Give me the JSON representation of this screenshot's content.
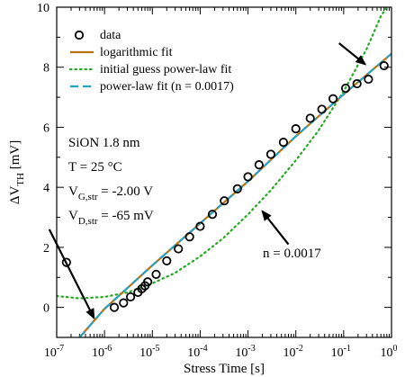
{
  "chart_data": {
    "type": "scatter",
    "xscale": "log",
    "xlim": [
      1e-07,
      1
    ],
    "ylim": [
      -1,
      10
    ],
    "xlabel": "Stress Time [s]",
    "ylabel": {
      "main": "ΔV",
      "sub": "TH",
      "unit": " [mV]"
    },
    "x_ticks": [
      {
        "value": 1e-07,
        "base": "10",
        "exp": "-7"
      },
      {
        "value": 1e-06,
        "base": "10",
        "exp": "-6"
      },
      {
        "value": 1e-05,
        "base": "10",
        "exp": "-5"
      },
      {
        "value": 0.0001,
        "base": "10",
        "exp": "-4"
      },
      {
        "value": 0.001,
        "base": "10",
        "exp": "-3"
      },
      {
        "value": 0.01,
        "base": "10",
        "exp": "-2"
      },
      {
        "value": 0.1,
        "base": "10",
        "exp": "-1"
      },
      {
        "value": 1,
        "base": "10",
        "exp": "0"
      }
    ],
    "y_ticks": [
      0,
      2,
      4,
      6,
      8,
      10
    ],
    "colors": {
      "data": "#000000",
      "log_fit": "#b8730f",
      "initial_guess": "#22aa22",
      "power_fit": "#2a9fbf"
    },
    "series": [
      {
        "name": "data",
        "kind": "markers",
        "points": [
          [
            1.6e-07,
            1.5
          ],
          [
            1.6e-06,
            0.0
          ],
          [
            2.5e-06,
            0.15
          ],
          [
            3.5e-06,
            0.35
          ],
          [
            5e-06,
            0.5
          ],
          [
            6e-06,
            0.62
          ],
          [
            7e-06,
            0.72
          ],
          [
            8e-06,
            0.85
          ],
          [
            1.2e-05,
            1.1
          ],
          [
            2e-05,
            1.55
          ],
          [
            3.5e-05,
            1.95
          ],
          [
            6e-05,
            2.35
          ],
          [
            0.0001,
            2.7
          ],
          [
            0.00018,
            3.1
          ],
          [
            0.00032,
            3.55
          ],
          [
            0.0006,
            3.95
          ],
          [
            0.001,
            4.35
          ],
          [
            0.0017,
            4.75
          ],
          [
            0.003,
            5.1
          ],
          [
            0.0055,
            5.5
          ],
          [
            0.01,
            5.95
          ],
          [
            0.02,
            6.3
          ],
          [
            0.035,
            6.6
          ],
          [
            0.06,
            6.95
          ],
          [
            0.11,
            7.3
          ],
          [
            0.19,
            7.45
          ],
          [
            0.33,
            7.6
          ],
          [
            0.7,
            8.05
          ]
        ]
      },
      {
        "name": "logarithmic fit",
        "kind": "solid",
        "points": [
          [
            3e-07,
            -1.0
          ],
          [
            1e-06,
            -0.05
          ],
          [
            1e-05,
            1.4
          ],
          [
            0.0001,
            2.8
          ],
          [
            0.001,
            4.2
          ],
          [
            0.01,
            5.7
          ],
          [
            0.1,
            7.1
          ],
          [
            1,
            8.45
          ]
        ]
      },
      {
        "name": "initial guess power-law fit",
        "kind": "dotted",
        "points": [
          [
            1e-07,
            0.38
          ],
          [
            3e-07,
            0.3
          ],
          [
            1e-06,
            0.35
          ],
          [
            3e-06,
            0.5
          ],
          [
            1e-05,
            0.8
          ],
          [
            3e-05,
            1.15
          ],
          [
            0.0001,
            1.7
          ],
          [
            0.0003,
            2.3
          ],
          [
            0.001,
            3.1
          ],
          [
            0.003,
            3.9
          ],
          [
            0.01,
            4.9
          ],
          [
            0.03,
            5.9
          ],
          [
            0.1,
            7.2
          ],
          [
            0.3,
            8.6
          ],
          [
            0.6,
            9.7
          ],
          [
            0.8,
            10.0
          ]
        ]
      },
      {
        "name": "power-law fit (n = 0.0017)",
        "kind": "dashed",
        "points": [
          [
            3e-07,
            -1.0
          ],
          [
            1e-06,
            -0.05
          ],
          [
            1e-05,
            1.4
          ],
          [
            0.0001,
            2.8
          ],
          [
            0.001,
            4.2
          ],
          [
            0.01,
            5.7
          ],
          [
            0.1,
            7.1
          ],
          [
            1,
            8.45
          ]
        ]
      }
    ],
    "legend": {
      "position": "top-left",
      "entries": [
        "data",
        "logarithmic fit",
        "initial guess power-law fit",
        "power-law fit (n = 0.0017)"
      ]
    },
    "annotations": {
      "device_lines": [
        {
          "main": "SiON 1.8 nm",
          "sub": "",
          "tail": ""
        },
        {
          "main": "T = 25 °C",
          "sub": "",
          "tail": ""
        },
        {
          "main": "V",
          "sub": "G,str",
          "tail": " = -2.00 V"
        },
        {
          "main": "V",
          "sub": "D,str",
          "tail": " = -65 mV"
        }
      ],
      "n_label": "n = 0.0017",
      "arrows": [
        {
          "from": [
            7e-08,
            2.6
          ],
          "to": [
            6e-07,
            -0.35
          ]
        },
        {
          "from": [
            0.007,
            2.1
          ],
          "to": [
            0.002,
            3.2
          ]
        },
        {
          "from": [
            0.08,
            8.8
          ],
          "to": [
            0.28,
            8.1
          ]
        }
      ]
    }
  }
}
